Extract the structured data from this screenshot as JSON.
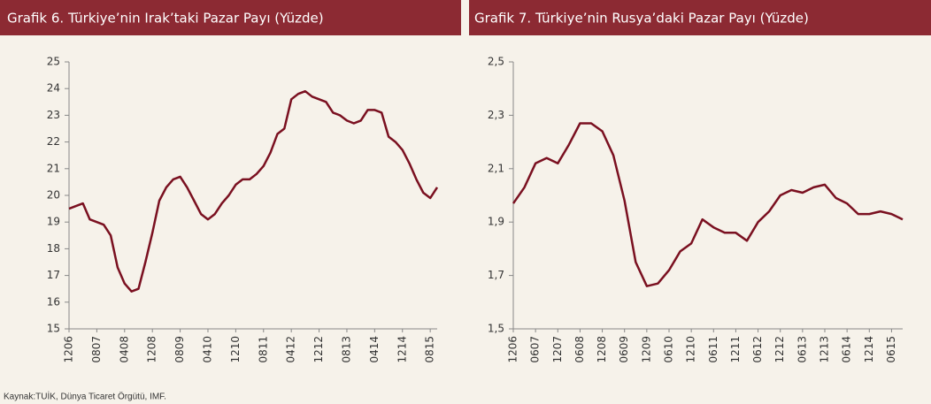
{
  "chart_data": [
    {
      "type": "line",
      "title": "Grafik 6. Türkiye’nin Irak’taki Pazar Payı (Yüzde)",
      "categories": [
        "1206",
        null,
        null,
        null,
        "0807",
        null,
        null,
        null,
        "0408",
        null,
        null,
        null,
        "1208",
        null,
        null,
        null,
        "0809",
        null,
        null,
        null,
        "0410",
        null,
        null,
        null,
        "1210",
        null,
        null,
        null,
        "0811",
        null,
        null,
        null,
        "0412",
        null,
        null,
        null,
        "1212",
        null,
        null,
        null,
        "0813",
        null,
        null,
        null,
        "0414",
        null,
        null,
        null,
        "1214",
        null,
        null,
        null,
        "0815",
        null
      ],
      "series": [
        {
          "color": "#7a1020",
          "values": [
            19.5,
            19.6,
            19.7,
            19.1,
            19.0,
            18.9,
            18.5,
            17.3,
            16.7,
            16.4,
            16.5,
            17.5,
            18.6,
            19.8,
            20.3,
            20.6,
            20.7,
            20.3,
            19.8,
            19.3,
            19.1,
            19.3,
            19.7,
            20.0,
            20.4,
            20.6,
            20.6,
            20.8,
            21.1,
            21.6,
            22.3,
            22.5,
            23.6,
            23.8,
            23.9,
            23.7,
            23.6,
            23.5,
            23.1,
            23.0,
            22.8,
            22.7,
            22.8,
            23.2,
            23.2,
            23.1,
            22.2,
            22.0,
            21.7,
            21.2,
            20.6,
            20.1,
            19.9,
            20.3
          ]
        }
      ],
      "ylim": [
        15,
        25
      ],
      "yticks": [
        15,
        16,
        17,
        18,
        19,
        20,
        21,
        22,
        23,
        24,
        25
      ]
    },
    {
      "type": "line",
      "title": "Grafik 7. Türkiye’nin Rusya’daki Pazar Payı (Yüzde)",
      "categories": [
        "1206",
        null,
        "0607",
        null,
        "1207",
        null,
        "0608",
        null,
        "1208",
        null,
        "0609",
        null,
        "1209",
        null,
        "0610",
        null,
        "1210",
        null,
        "0611",
        null,
        "1211",
        null,
        "0612",
        null,
        "1212",
        null,
        "0613",
        null,
        "1213",
        null,
        "0614",
        null,
        "1214",
        null,
        "0615",
        null
      ],
      "series": [
        {
          "color": "#7a1020",
          "values": [
            1.97,
            2.03,
            2.12,
            2.14,
            2.12,
            2.19,
            2.27,
            2.27,
            2.24,
            2.15,
            1.98,
            1.75,
            1.66,
            1.67,
            1.72,
            1.79,
            1.82,
            1.91,
            1.88,
            1.86,
            1.86,
            1.83,
            1.9,
            1.94,
            2.0,
            2.02,
            2.01,
            2.03,
            2.04,
            1.99,
            1.97,
            1.93,
            1.93,
            1.94,
            1.93,
            1.91
          ]
        }
      ],
      "ylim": [
        1.5,
        2.5
      ],
      "yticks": [
        {
          "value": 1.5,
          "label": "1,5"
        },
        {
          "value": 1.7,
          "label": "1,7"
        },
        {
          "value": 1.9,
          "label": "1,9"
        },
        {
          "value": 2.1,
          "label": "2,1"
        },
        {
          "value": 2.3,
          "label": "2,3"
        },
        {
          "value": 2.5,
          "label": "2,5"
        }
      ]
    }
  ],
  "source": "Kaynak:TUİK, Dünya Ticaret Örgütü, IMF."
}
